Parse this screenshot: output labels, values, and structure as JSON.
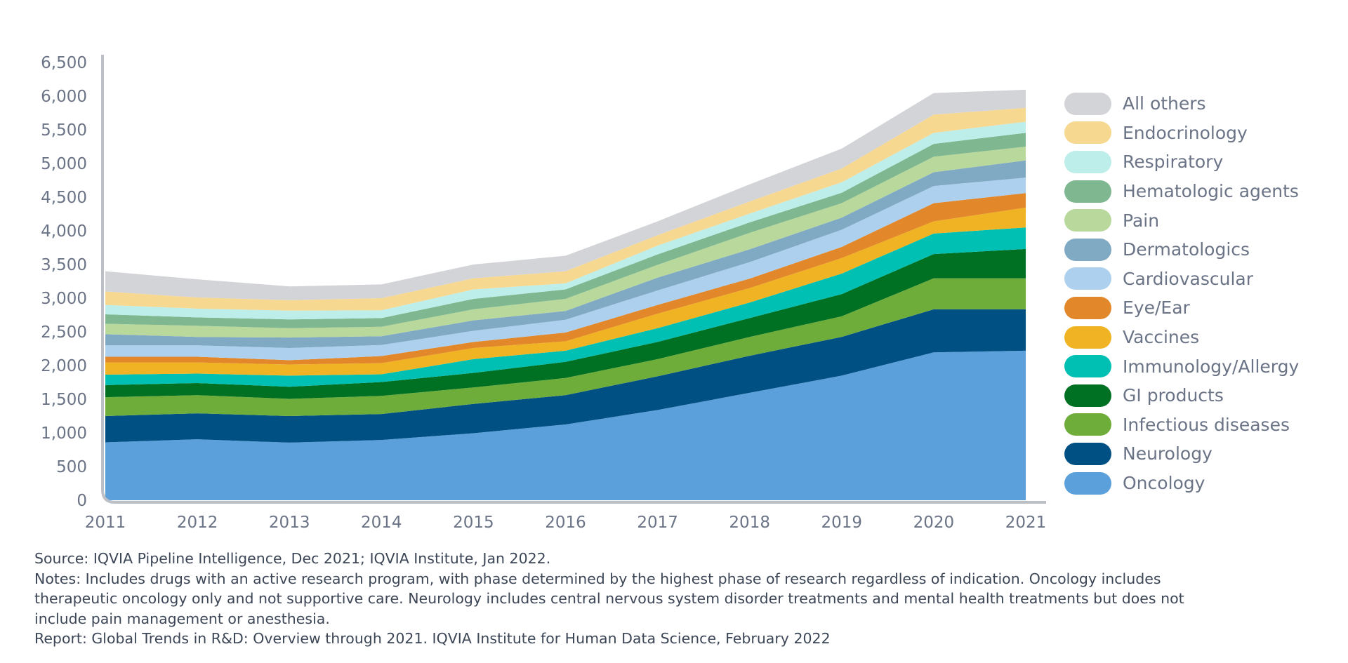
{
  "chart_data": {
    "type": "area",
    "stacked": true,
    "x": [
      2011,
      2012,
      2013,
      2014,
      2015,
      2016,
      2017,
      2018,
      2019,
      2020,
      2021
    ],
    "ylim": [
      0,
      6500
    ],
    "yticks": [
      "0",
      "500",
      "1,000",
      "1,500",
      "2,000",
      "2,500",
      "3,000",
      "3,500",
      "4,000",
      "4,500",
      "5,000",
      "5,500",
      "6,000",
      "6,500"
    ],
    "ytick_values": [
      0,
      500,
      1000,
      1500,
      2000,
      2500,
      3000,
      3500,
      4000,
      4500,
      5000,
      5500,
      6000,
      6500
    ],
    "xticks": [
      "2011",
      "2012",
      "2013",
      "2014",
      "2015",
      "2016",
      "2017",
      "2018",
      "2019",
      "2020",
      "2021"
    ],
    "grid": false,
    "legend_placement": "right",
    "series": [
      {
        "name": "Oncology",
        "color": "#5ba0db",
        "values": [
          860,
          905,
          855,
          895,
          995,
          1125,
          1340,
          1595,
          1850,
          2195,
          2220
        ]
      },
      {
        "name": "Neurology",
        "color": "#005083",
        "values": [
          390,
          385,
          395,
          385,
          435,
          435,
          500,
          550,
          575,
          640,
          615
        ]
      },
      {
        "name": "Infectious diseases",
        "color": "#6fad3b",
        "values": [
          280,
          270,
          255,
          270,
          245,
          255,
          255,
          280,
          305,
          460,
          460
        ]
      },
      {
        "name": "GI products",
        "color": "#007123",
        "values": [
          180,
          180,
          180,
          205,
          215,
          240,
          255,
          280,
          330,
          360,
          435
        ]
      },
      {
        "name": "Immunology/Allergy",
        "color": "#00bfb3",
        "values": [
          155,
          140,
          165,
          115,
          205,
          165,
          205,
          230,
          305,
          305,
          320
        ]
      },
      {
        "name": "Vaccines",
        "color": "#f0b323",
        "values": [
          180,
          165,
          165,
          165,
          165,
          140,
          215,
          215,
          230,
          180,
          295
        ]
      },
      {
        "name": "Eye/Ear",
        "color": "#e3882a",
        "values": [
          85,
          85,
          65,
          105,
          90,
          130,
          130,
          140,
          165,
          270,
          215
        ]
      },
      {
        "name": "Cardiovascular",
        "color": "#acd0ee",
        "values": [
          170,
          170,
          180,
          165,
          165,
          190,
          215,
          245,
          255,
          255,
          230
        ]
      },
      {
        "name": "Dermatologics",
        "color": "#80a9c4",
        "values": [
          165,
          125,
          155,
          130,
          155,
          130,
          190,
          190,
          180,
          205,
          255
        ]
      },
      {
        "name": "Pain",
        "color": "#b8d89c",
        "values": [
          155,
          165,
          140,
          140,
          165,
          180,
          190,
          245,
          215,
          230,
          205
        ]
      },
      {
        "name": "Hematologic agents",
        "color": "#7fb890",
        "values": [
          140,
          125,
          130,
          130,
          155,
          140,
          155,
          155,
          155,
          190,
          205
        ]
      },
      {
        "name": "Respiratory",
        "color": "#bdeeea",
        "values": [
          140,
          130,
          130,
          115,
          140,
          90,
          130,
          130,
          155,
          165,
          165
        ]
      },
      {
        "name": "Endocrinology",
        "color": "#f7d891",
        "values": [
          200,
          165,
          155,
          180,
          165,
          180,
          155,
          180,
          205,
          270,
          205
        ]
      },
      {
        "name": "All others",
        "color": "#d3d4d8",
        "values": [
          300,
          270,
          205,
          205,
          205,
          230,
          205,
          255,
          295,
          320,
          270
        ]
      }
    ]
  },
  "notes": {
    "source": "Source: IQVIA Pipeline Intelligence, Dec 2021; IQVIA Institute, Jan 2022.",
    "notes_line1": "Notes: Includes drugs with an active research program, with phase determined by the highest phase of research regardless of indication. Oncology includes",
    "notes_line2": "therapeutic oncology only and not supportive care. Neurology includes central nervous system disorder treatments and mental health treatments but does not",
    "notes_line3": "include pain management or anesthesia.",
    "report": "Report: Global Trends in R&D: Overview through 2021. IQVIA Institute for Human Data Science, February 2022"
  }
}
